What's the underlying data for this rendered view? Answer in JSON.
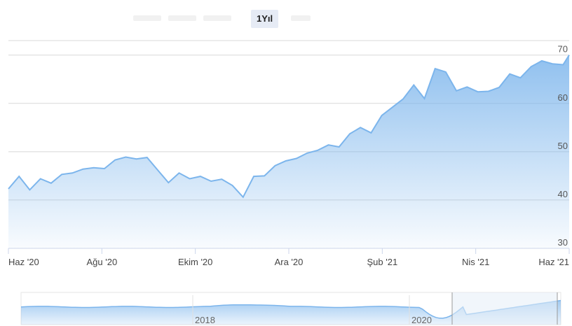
{
  "range_selector": {
    "active_label": "1Yıl"
  },
  "colors": {
    "line": "#7cb5ec",
    "fill_top": "#7cb5ec",
    "grid": "#d8d8d8",
    "axis": "#ccd6eb",
    "navigator_fill": "#cfe0f5",
    "navigator_mask": "#e6eef8"
  },
  "chart_data": {
    "type": "area",
    "title": "",
    "xlabel": "",
    "ylabel": "",
    "ylim": [
      30,
      73
    ],
    "y_ticks": [
      30,
      40,
      50,
      60,
      70
    ],
    "x_ticks": [
      "Haz '20",
      "Ağu '20",
      "Ekim '20",
      "Ara '20",
      "Şub '21",
      "Nis '21",
      "Haz '21"
    ],
    "grid": true,
    "series": [
      {
        "x": [
          "2020-06-01",
          "2020-06-08",
          "2020-06-15",
          "2020-06-22",
          "2020-06-29",
          "2020-07-06",
          "2020-07-13",
          "2020-07-20",
          "2020-07-27",
          "2020-08-03",
          "2020-08-10",
          "2020-08-17",
          "2020-08-24",
          "2020-08-31",
          "2020-09-07",
          "2020-09-14",
          "2020-09-21",
          "2020-09-28",
          "2020-10-05",
          "2020-10-12",
          "2020-10-19",
          "2020-10-26",
          "2020-11-02",
          "2020-11-09",
          "2020-11-16",
          "2020-11-23",
          "2020-11-30",
          "2020-12-07",
          "2020-12-14",
          "2020-12-21",
          "2020-12-28",
          "2021-01-04",
          "2021-01-11",
          "2021-01-18",
          "2021-01-25",
          "2021-02-01",
          "2021-02-08",
          "2021-02-15",
          "2021-02-22",
          "2021-03-01",
          "2021-03-08",
          "2021-03-15",
          "2021-03-22",
          "2021-03-29",
          "2021-04-05",
          "2021-04-12",
          "2021-04-19",
          "2021-04-26",
          "2021-05-03",
          "2021-05-10",
          "2021-05-17",
          "2021-05-24",
          "2021-05-31",
          "2021-06-04"
        ],
        "values": [
          42.3,
          44.9,
          42.1,
          44.4,
          43.5,
          45.3,
          45.6,
          46.4,
          46.7,
          46.5,
          48.3,
          48.9,
          48.5,
          48.8,
          46.2,
          43.6,
          45.6,
          44.4,
          44.9,
          43.9,
          44.3,
          43.0,
          40.6,
          44.9,
          45.0,
          47.1,
          48.1,
          48.6,
          49.7,
          50.3,
          51.4,
          51.0,
          53.7,
          55.0,
          53.9,
          57.5,
          59.2,
          60.9,
          63.8,
          61.0,
          67.2,
          66.5,
          62.6,
          63.4,
          62.4,
          62.5,
          63.3,
          66.1,
          65.3,
          67.6,
          68.8,
          68.2,
          68.0,
          70.0
        ]
      }
    ],
    "navigator": {
      "x_labels": [
        "2018",
        "2020"
      ],
      "selected_range": [
        "Haz '20",
        "Haz '21"
      ]
    }
  }
}
